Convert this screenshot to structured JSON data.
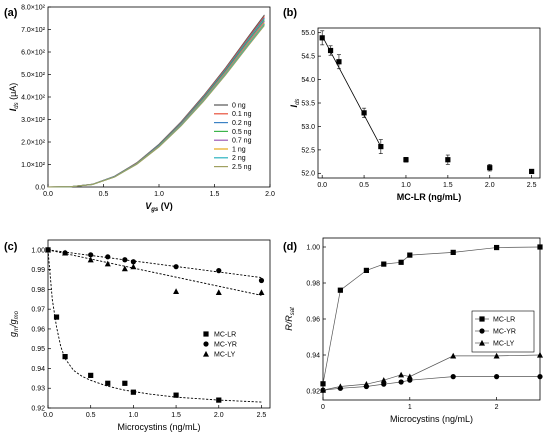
{
  "chart_data": [
    {
      "panel_label": "(a)",
      "type": "line",
      "xlabel_main": "V",
      "xlabel_sub": "gs",
      "xlabel_unit": " (V)",
      "ylabel_main": "I",
      "ylabel_sub": "ds",
      "ylabel_unit": " (μA)",
      "xlim": [
        0,
        2.0
      ],
      "ylim": [
        0,
        800
      ],
      "x_ticks": [
        0.0,
        0.5,
        1.0,
        1.5,
        2.0
      ],
      "x_tick_labels": [
        "0.0",
        "0.5",
        "1.0",
        "1.5",
        "2.0"
      ],
      "y_ticks": [
        0,
        100,
        200,
        300,
        400,
        500,
        600,
        700,
        800
      ],
      "y_tick_labels": [
        "0.0",
        "1.0×10²",
        "2.0×10²",
        "3.0×10²",
        "4.0×10²",
        "5.0×10²",
        "6.0×10²",
        "7.0×10²",
        "8.0×10²"
      ],
      "legend_position": "bottom-right",
      "series": [
        {
          "name": "0 ng",
          "color": "#555555",
          "x": [
            0,
            0.2,
            0.4,
            0.6,
            0.8,
            1.0,
            1.2,
            1.4,
            1.6,
            1.8,
            1.95
          ],
          "y": [
            0,
            1,
            12,
            48,
            108,
            190,
            290,
            405,
            530,
            665,
            765
          ]
        },
        {
          "name": "0.1 ng",
          "color": "#e8503a",
          "x": [
            0,
            0.2,
            0.4,
            0.6,
            0.8,
            1.0,
            1.2,
            1.4,
            1.6,
            1.8,
            1.95
          ],
          "y": [
            0,
            1,
            12,
            47,
            107,
            188,
            288,
            402,
            526,
            660,
            758
          ]
        },
        {
          "name": "0.2 ng",
          "color": "#3b82c4",
          "x": [
            0,
            0.2,
            0.4,
            0.6,
            0.8,
            1.0,
            1.2,
            1.4,
            1.6,
            1.8,
            1.95
          ],
          "y": [
            0,
            1,
            12,
            47,
            106,
            187,
            286,
            399,
            522,
            655,
            752
          ]
        },
        {
          "name": "0.5 ng",
          "color": "#3cb44b",
          "x": [
            0,
            0.2,
            0.4,
            0.6,
            0.8,
            1.0,
            1.2,
            1.4,
            1.6,
            1.8,
            1.95
          ],
          "y": [
            0,
            1,
            11,
            46,
            105,
            185,
            283,
            395,
            517,
            648,
            744
          ]
        },
        {
          "name": "0.7 ng",
          "color": "#9b59b6",
          "x": [
            0,
            0.2,
            0.4,
            0.6,
            0.8,
            1.0,
            1.2,
            1.4,
            1.6,
            1.8,
            1.95
          ],
          "y": [
            0,
            1,
            11,
            46,
            104,
            183,
            280,
            391,
            512,
            642,
            737
          ]
        },
        {
          "name": "1 ng",
          "color": "#e6a817",
          "x": [
            0,
            0.2,
            0.4,
            0.6,
            0.8,
            1.0,
            1.2,
            1.4,
            1.6,
            1.8,
            1.95
          ],
          "y": [
            0,
            1,
            11,
            45,
            103,
            181,
            277,
            387,
            507,
            636,
            730
          ]
        },
        {
          "name": "2 ng",
          "color": "#2bb3c0",
          "x": [
            0,
            0.2,
            0.4,
            0.6,
            0.8,
            1.0,
            1.2,
            1.4,
            1.6,
            1.8,
            1.95
          ],
          "y": [
            0,
            1,
            11,
            45,
            102,
            180,
            275,
            384,
            503,
            631,
            724
          ]
        },
        {
          "name": "2.5 ng",
          "color": "#a0a060",
          "x": [
            0,
            0.2,
            0.4,
            0.6,
            0.8,
            1.0,
            1.2,
            1.4,
            1.6,
            1.8,
            1.95
          ],
          "y": [
            0,
            1,
            11,
            44,
            101,
            178,
            272,
            380,
            498,
            625,
            718
          ]
        }
      ]
    },
    {
      "panel_label": "(b)",
      "type": "scatter",
      "xlabel_main": "MC-LR (ng/mL)",
      "xlabel_sub": "",
      "xlabel_unit": "",
      "ylabel_main": "I",
      "ylabel_sub": "ds",
      "ylabel_unit": "",
      "xlim": [
        -0.05,
        2.6
      ],
      "ylim": [
        51.9,
        55.1
      ],
      "x_ticks": [
        0.0,
        0.5,
        1.0,
        1.5,
        2.0,
        2.5
      ],
      "x_tick_labels": [
        "0.0",
        "0.5",
        "1.0",
        "1.5",
        "2.0",
        "2.5"
      ],
      "y_ticks": [
        52.0,
        52.5,
        53.0,
        53.5,
        54.0,
        54.5,
        55.0
      ],
      "y_tick_labels": [
        "52.0",
        "52.5",
        "53.0",
        "53.5",
        "54.0",
        "54.5",
        "55.0"
      ],
      "series": [
        {
          "marker": "square",
          "x": [
            0,
            0.1,
            0.2,
            0.5,
            0.7,
            1.0,
            1.5,
            2.0,
            2.5
          ],
          "y": [
            54.89,
            54.62,
            54.38,
            53.29,
            52.57,
            52.29,
            52.29,
            52.12,
            52.04
          ],
          "yerr": [
            0.15,
            0.1,
            0.15,
            0.1,
            0.15,
            0.05,
            0.1,
            0.07,
            0.03
          ]
        }
      ],
      "fit_line": {
        "x": [
          0,
          0.7
        ],
        "y": [
          54.93,
          52.57
        ]
      }
    },
    {
      "panel_label": "(c)",
      "type": "scatter",
      "xlabel_main": "Microcystins (ng/mL)",
      "xlabel_sub": "",
      "xlabel_unit": "",
      "ylabel_main": "g",
      "ylabel_sub": "m",
      "ylabel_mid": "/g",
      "ylabel_sub2": "mo",
      "xlim": [
        0,
        2.6
      ],
      "ylim": [
        0.92,
        1.005
      ],
      "x_ticks": [
        0.0,
        0.5,
        1.0,
        1.5,
        2.0,
        2.5
      ],
      "x_tick_labels": [
        "0.0",
        "0.5",
        "1.0",
        "1.5",
        "2.0",
        "2.5"
      ],
      "y_ticks": [
        0.92,
        0.93,
        0.94,
        0.95,
        0.96,
        0.97,
        0.98,
        0.99,
        1.0
      ],
      "y_tick_labels": [
        "0.92",
        "0.93",
        "0.94",
        "0.95",
        "0.96",
        "0.97",
        "0.98",
        "0.99",
        "1.00"
      ],
      "legend_position": "lower-right",
      "series": [
        {
          "name": "MC-LR",
          "marker": "square",
          "x": [
            0,
            0.1,
            0.2,
            0.5,
            0.7,
            0.9,
            1.0,
            1.5,
            2.0
          ],
          "y": [
            1.0,
            0.966,
            0.946,
            0.9365,
            0.9325,
            0.9325,
            0.928,
            0.9265,
            0.924
          ],
          "fit_x": [
            0,
            0.05,
            0.1,
            0.15,
            0.2,
            0.3,
            0.4,
            0.5,
            0.7,
            0.9,
            1.2,
            1.5,
            2.0,
            2.5
          ],
          "fit_y": [
            1.0,
            0.975,
            0.961,
            0.951,
            0.945,
            0.939,
            0.936,
            0.934,
            0.931,
            0.929,
            0.927,
            0.9255,
            0.924,
            0.923
          ]
        },
        {
          "name": "MC-YR",
          "marker": "circle",
          "x": [
            0,
            0.2,
            0.5,
            0.7,
            0.9,
            1.0,
            1.5,
            2.0,
            2.5
          ],
          "y": [
            1.0,
            0.9985,
            0.9975,
            0.9965,
            0.995,
            0.994,
            0.9915,
            0.9895,
            0.9845
          ],
          "fit_x": [
            0,
            2.5
          ],
          "fit_y": [
            1.0,
            0.986
          ]
        },
        {
          "name": "MC-LY",
          "marker": "triangle",
          "x": [
            0,
            0.2,
            0.5,
            0.7,
            0.9,
            1.0,
            1.5,
            2.0,
            2.5
          ],
          "y": [
            1.0,
            0.9985,
            0.995,
            0.993,
            0.9905,
            0.9915,
            0.979,
            0.9785,
            0.9785
          ],
          "fit_x": [
            0,
            2.5
          ],
          "fit_y": [
            1.0,
            0.977
          ]
        }
      ]
    },
    {
      "panel_label": "(d)",
      "type": "line",
      "xlabel_main": "Microcystins (ng/mL)",
      "xlabel_sub": "",
      "xlabel_unit": "",
      "ylabel_main": "R/R",
      "ylabel_sub": "sat",
      "ylabel_unit": "",
      "xlim": [
        0,
        2.5
      ],
      "ylim": [
        0.915,
        1.005
      ],
      "x_ticks": [
        0,
        1,
        2
      ],
      "x_tick_labels": [
        "0",
        "1",
        "2"
      ],
      "y_ticks": [
        0.92,
        0.94,
        0.96,
        0.98,
        1.0
      ],
      "y_tick_labels": [
        "0.92",
        "0.94",
        "0.96",
        "0.98",
        "1.00"
      ],
      "legend_position": "middle-right",
      "series": [
        {
          "name": "MC-LR",
          "marker": "square",
          "x": [
            0,
            0.2,
            0.5,
            0.7,
            0.9,
            1.0,
            1.5,
            2.0,
            2.5
          ],
          "y": [
            0.924,
            0.976,
            0.987,
            0.9905,
            0.9915,
            0.9955,
            0.997,
            0.9997,
            1.0
          ]
        },
        {
          "name": "MC-YR",
          "marker": "circle",
          "x": [
            0,
            0.2,
            0.5,
            0.7,
            0.9,
            1.0,
            1.5,
            2.0,
            2.5
          ],
          "y": [
            0.9205,
            0.9215,
            0.9225,
            0.9238,
            0.925,
            0.926,
            0.928,
            0.928,
            0.928
          ]
        },
        {
          "name": "MC-LY",
          "marker": "triangle",
          "x": [
            0,
            0.2,
            0.5,
            0.7,
            0.9,
            1.0,
            1.5,
            2.0,
            2.5
          ],
          "y": [
            0.9205,
            0.9225,
            0.9238,
            0.926,
            0.929,
            0.928,
            0.9395,
            0.9395,
            0.94
          ]
        }
      ]
    }
  ]
}
